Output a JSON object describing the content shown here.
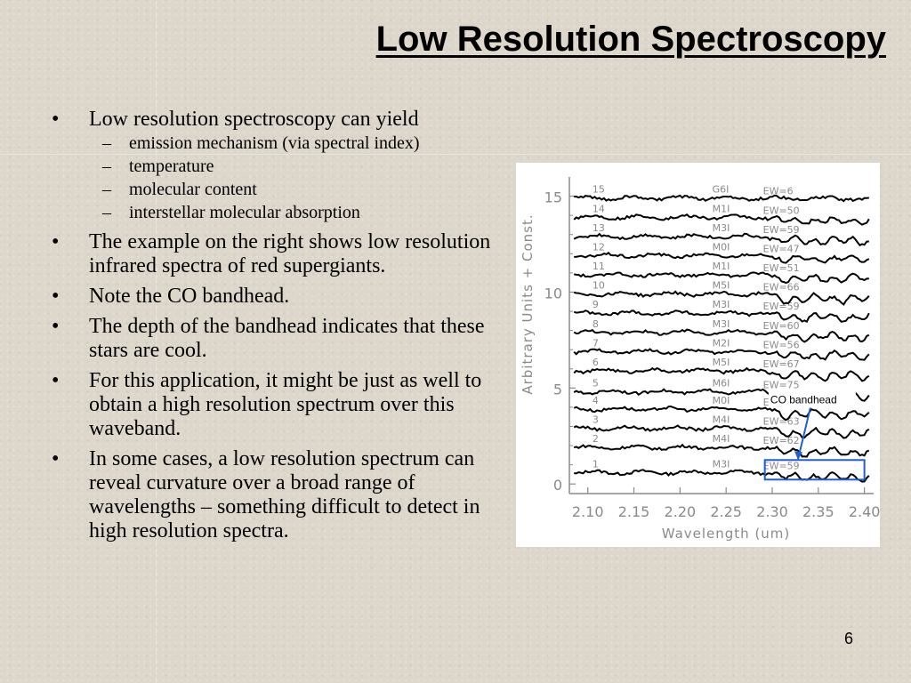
{
  "slide": {
    "title": "Low Resolution Spectroscopy",
    "page_number": "6"
  },
  "bullets": [
    {
      "text": "Low resolution spectroscopy can yield",
      "sub": [
        "emission mechanism (via spectral index)",
        "temperature",
        "molecular content",
        "interstellar molecular absorption"
      ]
    },
    {
      "text": "The example on the right shows low resolution infrared spectra of red supergiants.",
      "sub": []
    },
    {
      "text": "Note the CO bandhead.",
      "sub": []
    },
    {
      "text": "The depth of the bandhead indicates that these stars are cool.",
      "sub": []
    },
    {
      "text": "For this application, it might be just as well to obtain a high resolution spectrum over this waveband.",
      "sub": []
    },
    {
      "text": "In some cases, a low resolution spectrum can reveal curvature over a broad range of wavelengths – something difficult to detect in high resolution spectra.",
      "sub": []
    }
  ],
  "bullet_symbol": "•",
  "sub_symbol": "–",
  "figure": {
    "annotation": "CO bandhead",
    "highlight_color": "#1f5fd6",
    "line_color": "#000000"
  },
  "chart_data": {
    "type": "line",
    "xlabel": "Wavelength (um)",
    "ylabel": "Arbitrary Units + Const.",
    "xlim": [
      2.08,
      2.41
    ],
    "ylim": [
      -0.5,
      16
    ],
    "x_ticks": [
      "2.10",
      "2.15",
      "2.20",
      "2.25",
      "2.30",
      "2.35",
      "2.40"
    ],
    "y_ticks": [
      "0",
      "5",
      "10",
      "15"
    ],
    "co_bandhead_wavelength": 2.293,
    "series": [
      {
        "number": "1",
        "spectral_type": "M3I",
        "ew": "EW=59",
        "offset": 0.6
      },
      {
        "number": "2",
        "spectral_type": "M4I",
        "ew": "EW=62",
        "offset": 1.9
      },
      {
        "number": "3",
        "spectral_type": "M4I",
        "ew": "EW=63",
        "offset": 2.9
      },
      {
        "number": "4",
        "spectral_type": "M0I",
        "ew": "EW=71",
        "offset": 3.9
      },
      {
        "number": "5",
        "spectral_type": "M6I",
        "ew": "EW=75",
        "offset": 4.8
      },
      {
        "number": "6",
        "spectral_type": "M5I",
        "ew": "EW=67",
        "offset": 5.9
      },
      {
        "number": "7",
        "spectral_type": "M2I",
        "ew": "EW=56",
        "offset": 6.9
      },
      {
        "number": "8",
        "spectral_type": "M3I",
        "ew": "EW=60",
        "offset": 7.9
      },
      {
        "number": "9",
        "spectral_type": "M3I",
        "ew": "EW=59",
        "offset": 8.9
      },
      {
        "number": "10",
        "spectral_type": "M5I",
        "ew": "EW=66",
        "offset": 9.9
      },
      {
        "number": "11",
        "spectral_type": "M1I",
        "ew": "EW=51",
        "offset": 10.9
      },
      {
        "number": "12",
        "spectral_type": "M0I",
        "ew": "EW=47",
        "offset": 11.9
      },
      {
        "number": "13",
        "spectral_type": "M3I",
        "ew": "EW=59",
        "offset": 12.9
      },
      {
        "number": "14",
        "spectral_type": "M1I",
        "ew": "EW=50",
        "offset": 13.9
      },
      {
        "number": "15",
        "spectral_type": "G6I",
        "ew": "EW=6",
        "offset": 14.9
      }
    ]
  }
}
